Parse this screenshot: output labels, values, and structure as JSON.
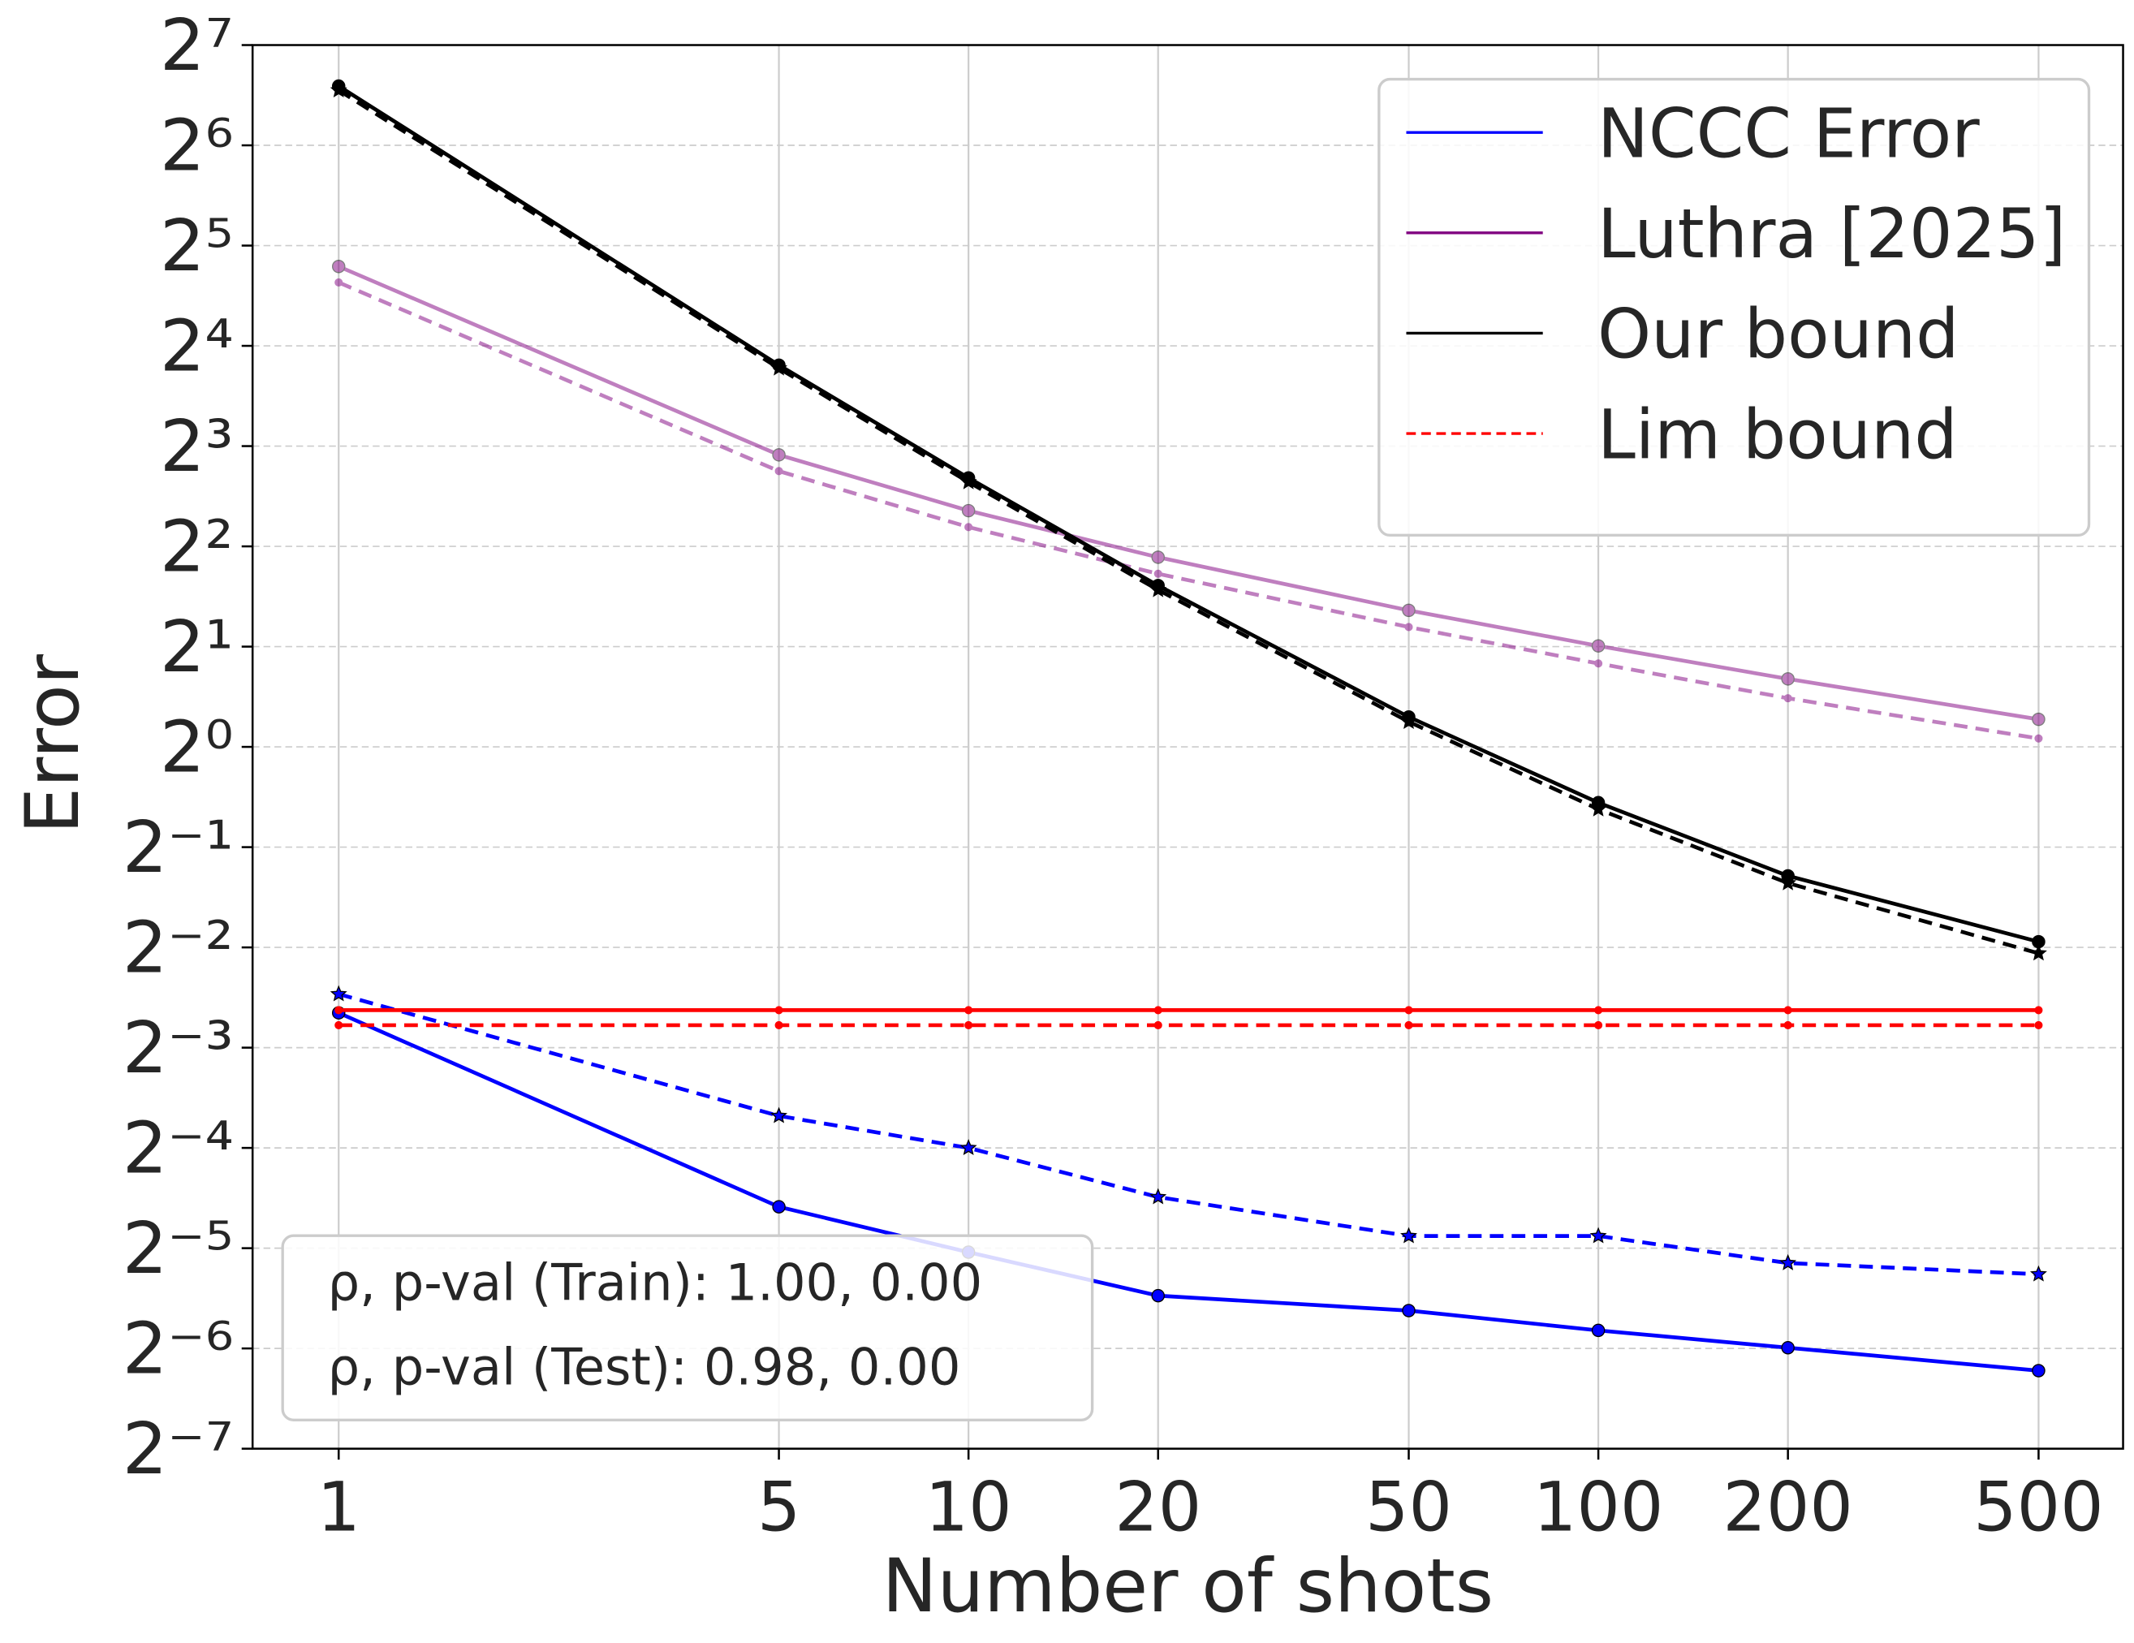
{
  "chart_data": {
    "type": "line",
    "x_label": "Number of shots",
    "y_label": "Error",
    "x": [
      1,
      5,
      10,
      20,
      50,
      100,
      200,
      500
    ],
    "xlim": [
      0.73,
      681
    ],
    "xticks": [
      1,
      5,
      10,
      20,
      50,
      100,
      200,
      500
    ],
    "x_scale": "log",
    "ylim": [
      0.0078125,
      128
    ],
    "y_scale": "log2",
    "yticks": [
      {
        "value": 0.0078125,
        "label": "2⁻⁷"
      },
      {
        "value": 0.015625,
        "label": "2⁻⁶"
      },
      {
        "value": 0.03125,
        "label": "2⁻⁵"
      },
      {
        "value": 0.0625,
        "label": "2⁻⁴"
      },
      {
        "value": 0.125,
        "label": "2⁻³"
      },
      {
        "value": 0.25,
        "label": "2⁻²"
      },
      {
        "value": 0.5,
        "label": "2⁻¹"
      },
      {
        "value": 1,
        "label": "2⁰"
      },
      {
        "value": 2,
        "label": "2¹"
      },
      {
        "value": 4,
        "label": "2²"
      },
      {
        "value": 8,
        "label": "2³"
      },
      {
        "value": 16,
        "label": "2⁴"
      },
      {
        "value": 32,
        "label": "2⁵"
      },
      {
        "value": 64,
        "label": "2⁶"
      },
      {
        "value": 128,
        "label": "2⁷"
      }
    ],
    "grid": true,
    "legend_position": "upper right",
    "series": [
      {
        "name": "NCCC Error",
        "color": "#0000ff",
        "marker": "circle",
        "values": [
          0.159,
          0.0416,
          0.0304,
          0.0225,
          0.0203,
          0.0177,
          0.0157,
          0.0134
        ]
      },
      {
        "color": "#0000ff",
        "dashed": true,
        "marker": "star",
        "values": [
          0.181,
          0.078,
          0.0625,
          0.0445,
          0.034,
          0.034,
          0.0282,
          0.0261
        ]
      },
      {
        "name": "Luthra [2025]",
        "color": "#800080",
        "opacity": 0.5,
        "marker": "circle",
        "values": [
          27.7,
          7.53,
          5.12,
          3.71,
          2.57,
          2.01,
          1.6,
          1.21
        ]
      },
      {
        "color": "#800080",
        "opacity": 0.5,
        "dashed": true,
        "values": [
          24.8,
          6.73,
          4.57,
          3.31,
          2.29,
          1.78,
          1.4,
          1.06
        ]
      },
      {
        "name": "Our bound",
        "color": "#000000",
        "marker": "circle",
        "values": [
          96.4,
          14.0,
          6.42,
          3.05,
          1.23,
          0.68,
          0.41,
          0.26
        ]
      },
      {
        "color": "#000000",
        "dashed": true,
        "marker": "star",
        "values": [
          93.7,
          13.7,
          6.24,
          2.96,
          1.19,
          0.65,
          0.39,
          0.24
        ]
      },
      {
        "color": "#ff0000",
        "values": [
          0.162,
          0.162,
          0.162,
          0.162,
          0.162,
          0.162,
          0.162,
          0.162
        ]
      },
      {
        "name": "Lim bound",
        "color": "#ff0000",
        "dashed": true,
        "values": [
          0.146,
          0.146,
          0.146,
          0.146,
          0.146,
          0.146,
          0.146,
          0.146
        ]
      }
    ],
    "annotations": [
      "ρ, p-val (Train): 1.00, 0.00",
      "ρ, p-val (Test): 0.98, 0.00"
    ]
  }
}
